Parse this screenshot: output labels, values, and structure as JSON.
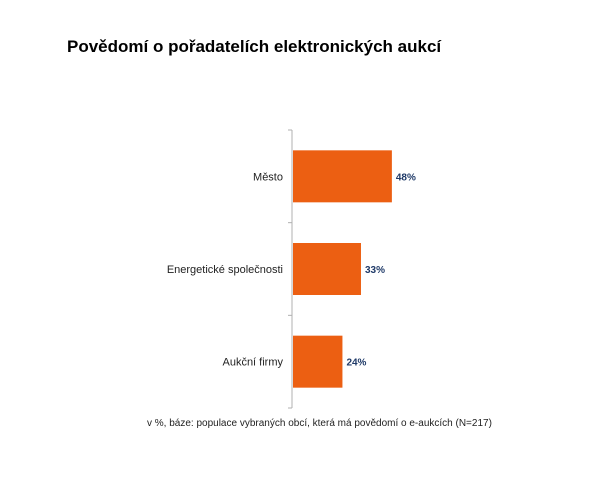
{
  "title": "Povědomí o pořadatelích elektronických aukcí",
  "footnote": "v %, báze: populace vybraných obcí, která má povědomí o e-aukcích (N=217)",
  "colors": {
    "bar": "#EC5F12",
    "value_label": "#1F3A68",
    "axis": "#B0B0B0",
    "category_label": "#222222"
  },
  "chart_data": {
    "type": "bar",
    "orientation": "horizontal",
    "title": "Povědomí o pořadatelích elektronických aukcí",
    "categories": [
      "Město",
      "Energetické společnosti",
      "Aukční firmy"
    ],
    "values": [
      48,
      33,
      24
    ],
    "value_labels": [
      "48%",
      "33%",
      "24%"
    ],
    "xlim": [
      0,
      100
    ],
    "unit": "%",
    "grid": false,
    "legend": "none"
  }
}
